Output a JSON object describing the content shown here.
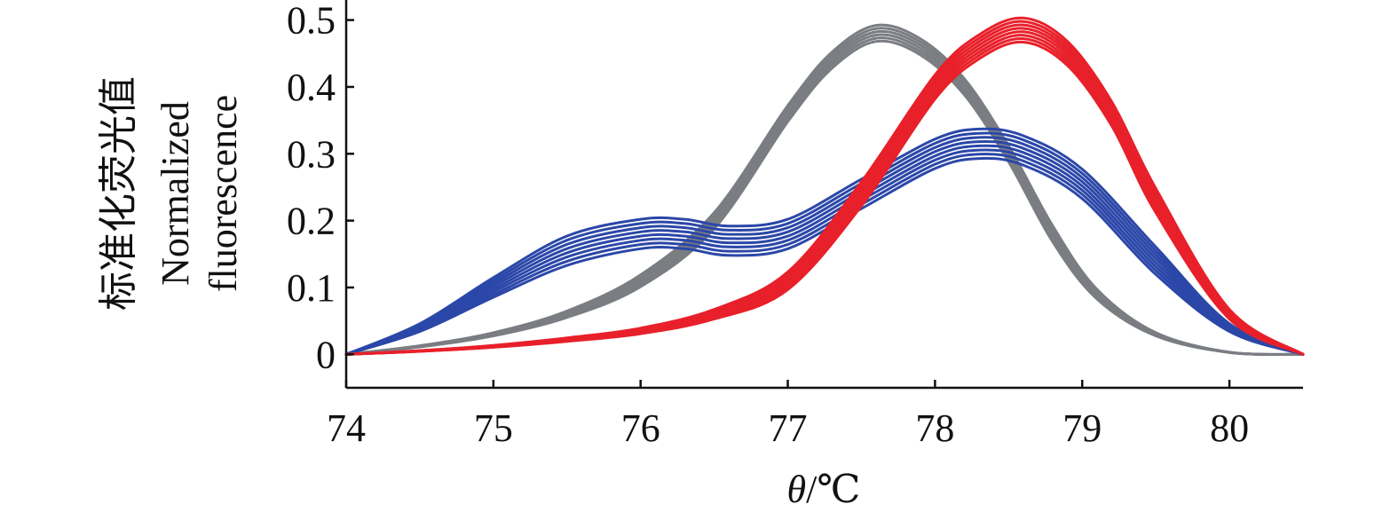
{
  "chart_data": {
    "type": "line",
    "title": "",
    "xlabel_symbol": "θ",
    "xlabel_unit": "/℃",
    "ylabel_cn": "标准化荧光值",
    "ylabel_en_line1": "Normalized",
    "ylabel_en_line2": "fluorescence",
    "xlim": [
      74,
      80.5
    ],
    "ylim": [
      -0.05,
      0.53
    ],
    "x_ticks": [
      74,
      75,
      76,
      77,
      78,
      79,
      80
    ],
    "x_tick_labels": [
      "74",
      "75",
      "76",
      "77",
      "78",
      "79",
      "80"
    ],
    "y_ticks": [
      0,
      0.1,
      0.2,
      0.3,
      0.4,
      0.5
    ],
    "y_tick_labels": [
      "0",
      "0.1",
      "0.2",
      "0.3",
      "0.4",
      "0.5"
    ],
    "grid": false,
    "legend": "none",
    "series": [
      {
        "color": "#7a7d82",
        "band": 0.012,
        "count": 6,
        "x": [
          74.0,
          74.5,
          75.0,
          75.5,
          76.0,
          76.5,
          77.0,
          77.3,
          77.6,
          77.9,
          78.2,
          78.5,
          78.8,
          79.1,
          79.5,
          80.0,
          80.5
        ],
        "y": [
          0.0,
          0.012,
          0.03,
          0.06,
          0.11,
          0.2,
          0.36,
          0.44,
          0.48,
          0.46,
          0.4,
          0.3,
          0.18,
          0.09,
          0.03,
          0.003,
          0.0
        ]
      },
      {
        "color": "#2b47a8",
        "band": 0.022,
        "count": 8,
        "x": [
          74.0,
          74.5,
          75.0,
          75.5,
          76.0,
          76.3,
          76.6,
          77.0,
          77.5,
          78.0,
          78.3,
          78.6,
          79.0,
          79.5,
          80.0,
          80.5
        ],
        "y": [
          0.0,
          0.04,
          0.1,
          0.155,
          0.18,
          0.18,
          0.17,
          0.18,
          0.24,
          0.3,
          0.315,
          0.305,
          0.255,
          0.14,
          0.04,
          0.0
        ]
      },
      {
        "color": "#e8202a",
        "band": 0.018,
        "count": 8,
        "x": [
          74.0,
          74.5,
          75.0,
          75.5,
          76.0,
          76.5,
          77.0,
          77.5,
          78.0,
          78.3,
          78.6,
          78.9,
          79.2,
          79.5,
          80.0,
          80.5
        ],
        "y": [
          0.0,
          0.005,
          0.012,
          0.022,
          0.035,
          0.06,
          0.11,
          0.24,
          0.4,
          0.46,
          0.485,
          0.45,
          0.36,
          0.23,
          0.06,
          0.0
        ]
      }
    ]
  }
}
